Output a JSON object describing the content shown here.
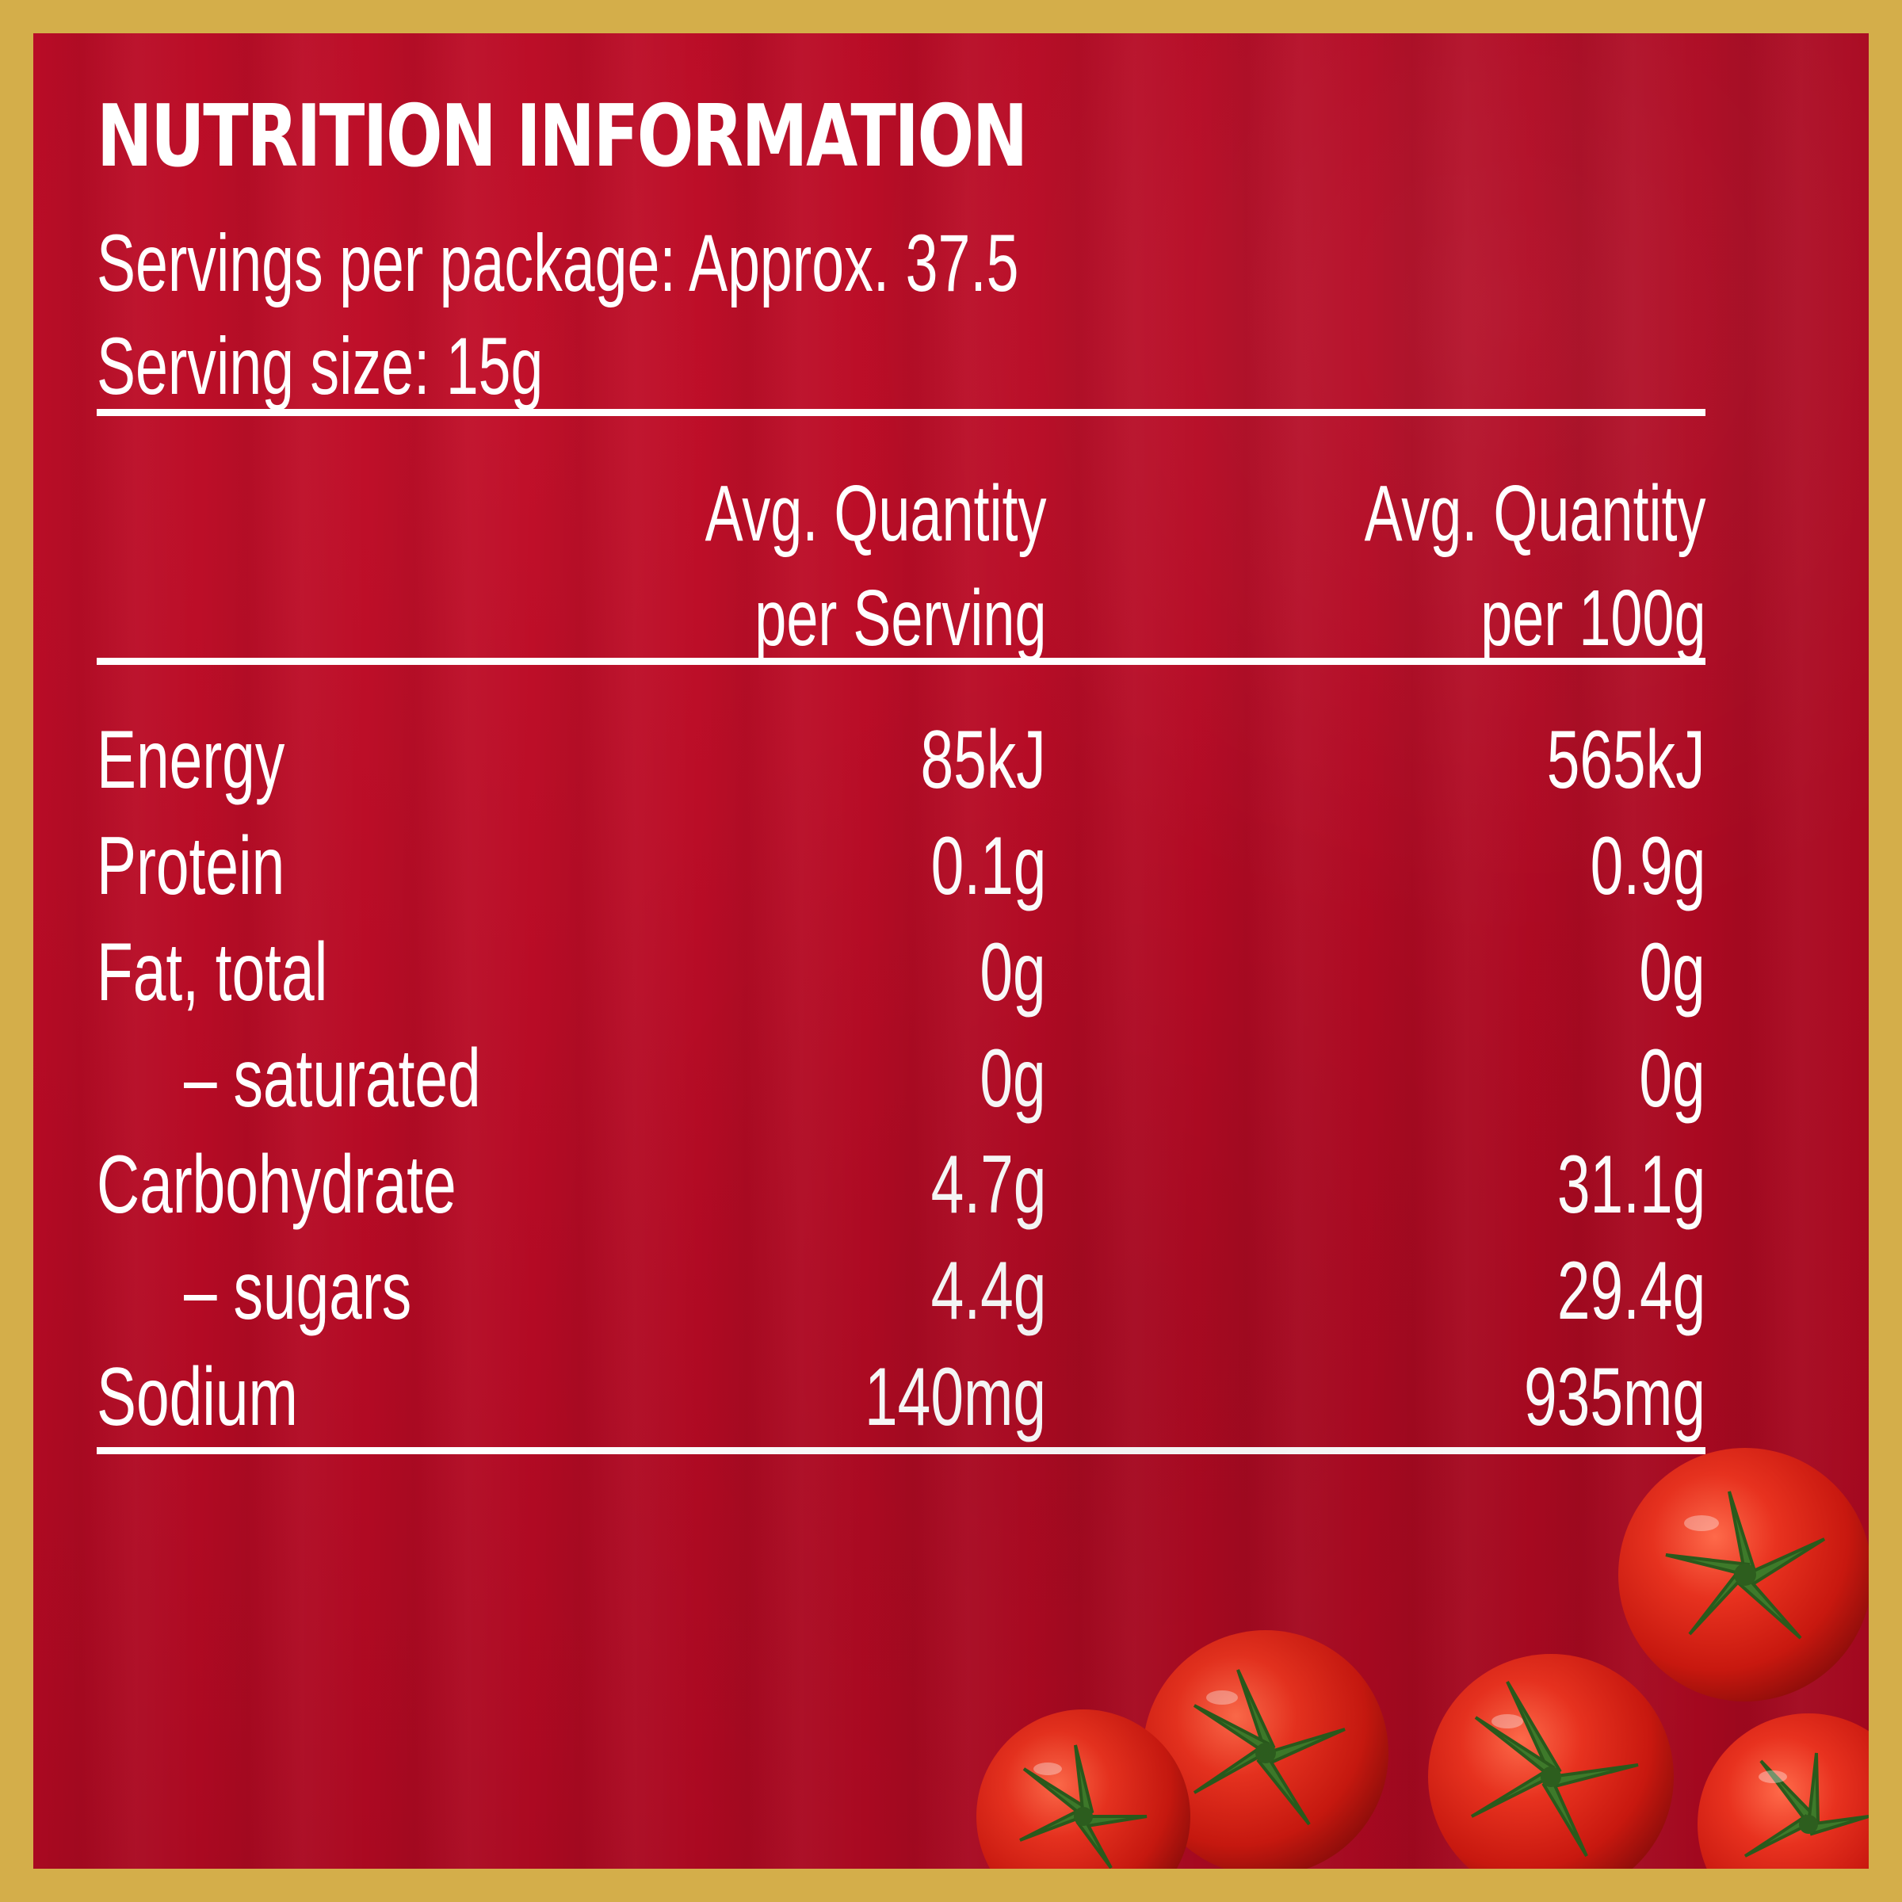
{
  "title": "NUTRITION INFORMATION",
  "servings_per_package": "Servings per package: Approx. 37.5",
  "serving_size": "Serving size: 15g",
  "columns": {
    "per_serving_line1": "Avg. Quantity",
    "per_serving_line2": "per Serving",
    "per_100g_line1": "Avg. Quantity",
    "per_100g_line2": "per 100g"
  },
  "rows": [
    {
      "label": "Energy",
      "per_serving": "85kJ",
      "per_100g": "565kJ"
    },
    {
      "label": "Protein",
      "per_serving": "0.1g",
      "per_100g": "0.9g"
    },
    {
      "label": "Fat, total",
      "per_serving": "0g",
      "per_100g": "0g"
    },
    {
      "label": "– saturated",
      "per_serving": "0g",
      "per_100g": "0g"
    },
    {
      "label": "Carbohydrate",
      "per_serving": "4.7g",
      "per_100g": "31.1g"
    },
    {
      "label": "– sugars",
      "per_serving": "4.4g",
      "per_100g": "29.4g"
    },
    {
      "label": "Sodium",
      "per_serving": "140mg",
      "per_100g": "935mg"
    }
  ],
  "colors": {
    "border": "#d4ae4a",
    "background": "#b40a24",
    "text": "#ffffff"
  },
  "decoration": "cherry-tomatoes-illustration"
}
